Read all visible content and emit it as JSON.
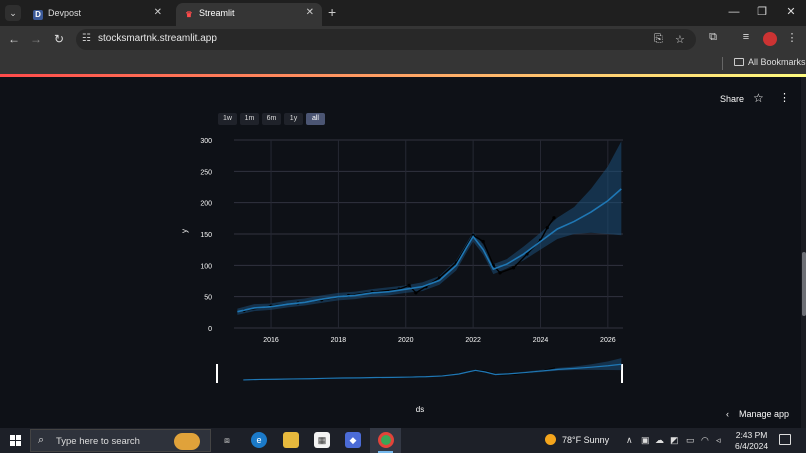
{
  "browser": {
    "tabs": [
      {
        "label": "Devpost",
        "favicon": "D"
      },
      {
        "label": "Streamlit",
        "favicon": "S"
      }
    ],
    "url": "stocksmartnk.streamlit.app",
    "bookmarks_label": "All Bookmarks",
    "icons": [
      "tab-search-icon",
      "new-tab-icon",
      "minimize-icon",
      "restore-icon",
      "close-icon",
      "back-icon",
      "forward-icon",
      "reload-icon",
      "site-info-icon",
      "install-app-icon",
      "bookmark-star-icon",
      "extensions-icon",
      "reading-list-icon",
      "profile-avatar-icon",
      "menu-icon",
      "folder-icon"
    ]
  },
  "app": {
    "share_label": "Share",
    "manage_label": "Manage app",
    "range_buttons": [
      "1w",
      "1m",
      "6m",
      "1y",
      "all"
    ],
    "active_range": "all"
  },
  "chart_data": {
    "type": "line",
    "title": "",
    "xlabel": "ds",
    "ylabel": "y",
    "x_range": [
      "2014-11",
      "2026-07"
    ],
    "ylim": [
      0,
      300
    ],
    "y_ticks": [
      0,
      50,
      100,
      150,
      200,
      250,
      300
    ],
    "x_ticks": [
      "2016",
      "2018",
      "2020",
      "2022",
      "2024",
      "2026"
    ],
    "grid": true,
    "has_range_slider": true,
    "colors": {
      "forecast": "#1f77b4",
      "band": "#1c4f79",
      "actual": "#000000"
    },
    "series": [
      {
        "x": [
          2015.0,
          2015.5,
          2016.0,
          2016.5,
          2017.0,
          2017.5,
          2018.0,
          2018.5,
          2019.0,
          2019.5,
          2020.0,
          2020.5,
          2021.0,
          2021.5,
          2021.8,
          2022.0,
          2022.3,
          2022.6,
          2023.0,
          2023.5,
          2024.0,
          2024.5,
          2025.0,
          2025.5,
          2026.0,
          2026.4
        ],
        "y": [
          26,
          32,
          34,
          38,
          41,
          46,
          50,
          52,
          56,
          58,
          62,
          66,
          76,
          100,
          128,
          146,
          125,
          94,
          102,
          118,
          138,
          158,
          170,
          185,
          203,
          222
        ],
        "upper": [
          31,
          38,
          39,
          44,
          47,
          52,
          56,
          58,
          62,
          65,
          68,
          73,
          83,
          108,
          135,
          153,
          133,
          102,
          110,
          130,
          152,
          176,
          193,
          222,
          258,
          298
        ],
        "lower": [
          21,
          27,
          29,
          33,
          36,
          40,
          44,
          46,
          50,
          52,
          56,
          59,
          69,
          92,
          120,
          138,
          117,
          86,
          95,
          108,
          125,
          142,
          150,
          152,
          150,
          148
        ]
      },
      {
        "x": [
          2015.2,
          2016.0,
          2016.8,
          2017.5,
          2018.3,
          2019.0,
          2019.8,
          2020.1,
          2020.3,
          2020.6,
          2021.0,
          2021.5,
          2022.0,
          2022.3,
          2022.6,
          2022.8,
          2023.2,
          2023.6,
          2024.0,
          2024.2,
          2024.4
        ],
        "y": [
          28,
          35,
          40,
          45,
          52,
          57,
          62,
          68,
          56,
          66,
          80,
          104,
          148,
          138,
          100,
          88,
          96,
          118,
          140,
          160,
          176
        ]
      }
    ]
  },
  "taskbar": {
    "search_placeholder": "Type here to search",
    "weather": "78°F  Sunny",
    "time": "2:43 PM",
    "date": "6/4/2024",
    "icons": [
      "windows-start-icon",
      "task-view-icon",
      "edge-icon",
      "file-explorer-icon",
      "store-icon",
      "copilot-icon",
      "chrome-icon",
      "chevron-up-icon",
      "network-icon",
      "volume-icon",
      "notification-icon"
    ]
  }
}
